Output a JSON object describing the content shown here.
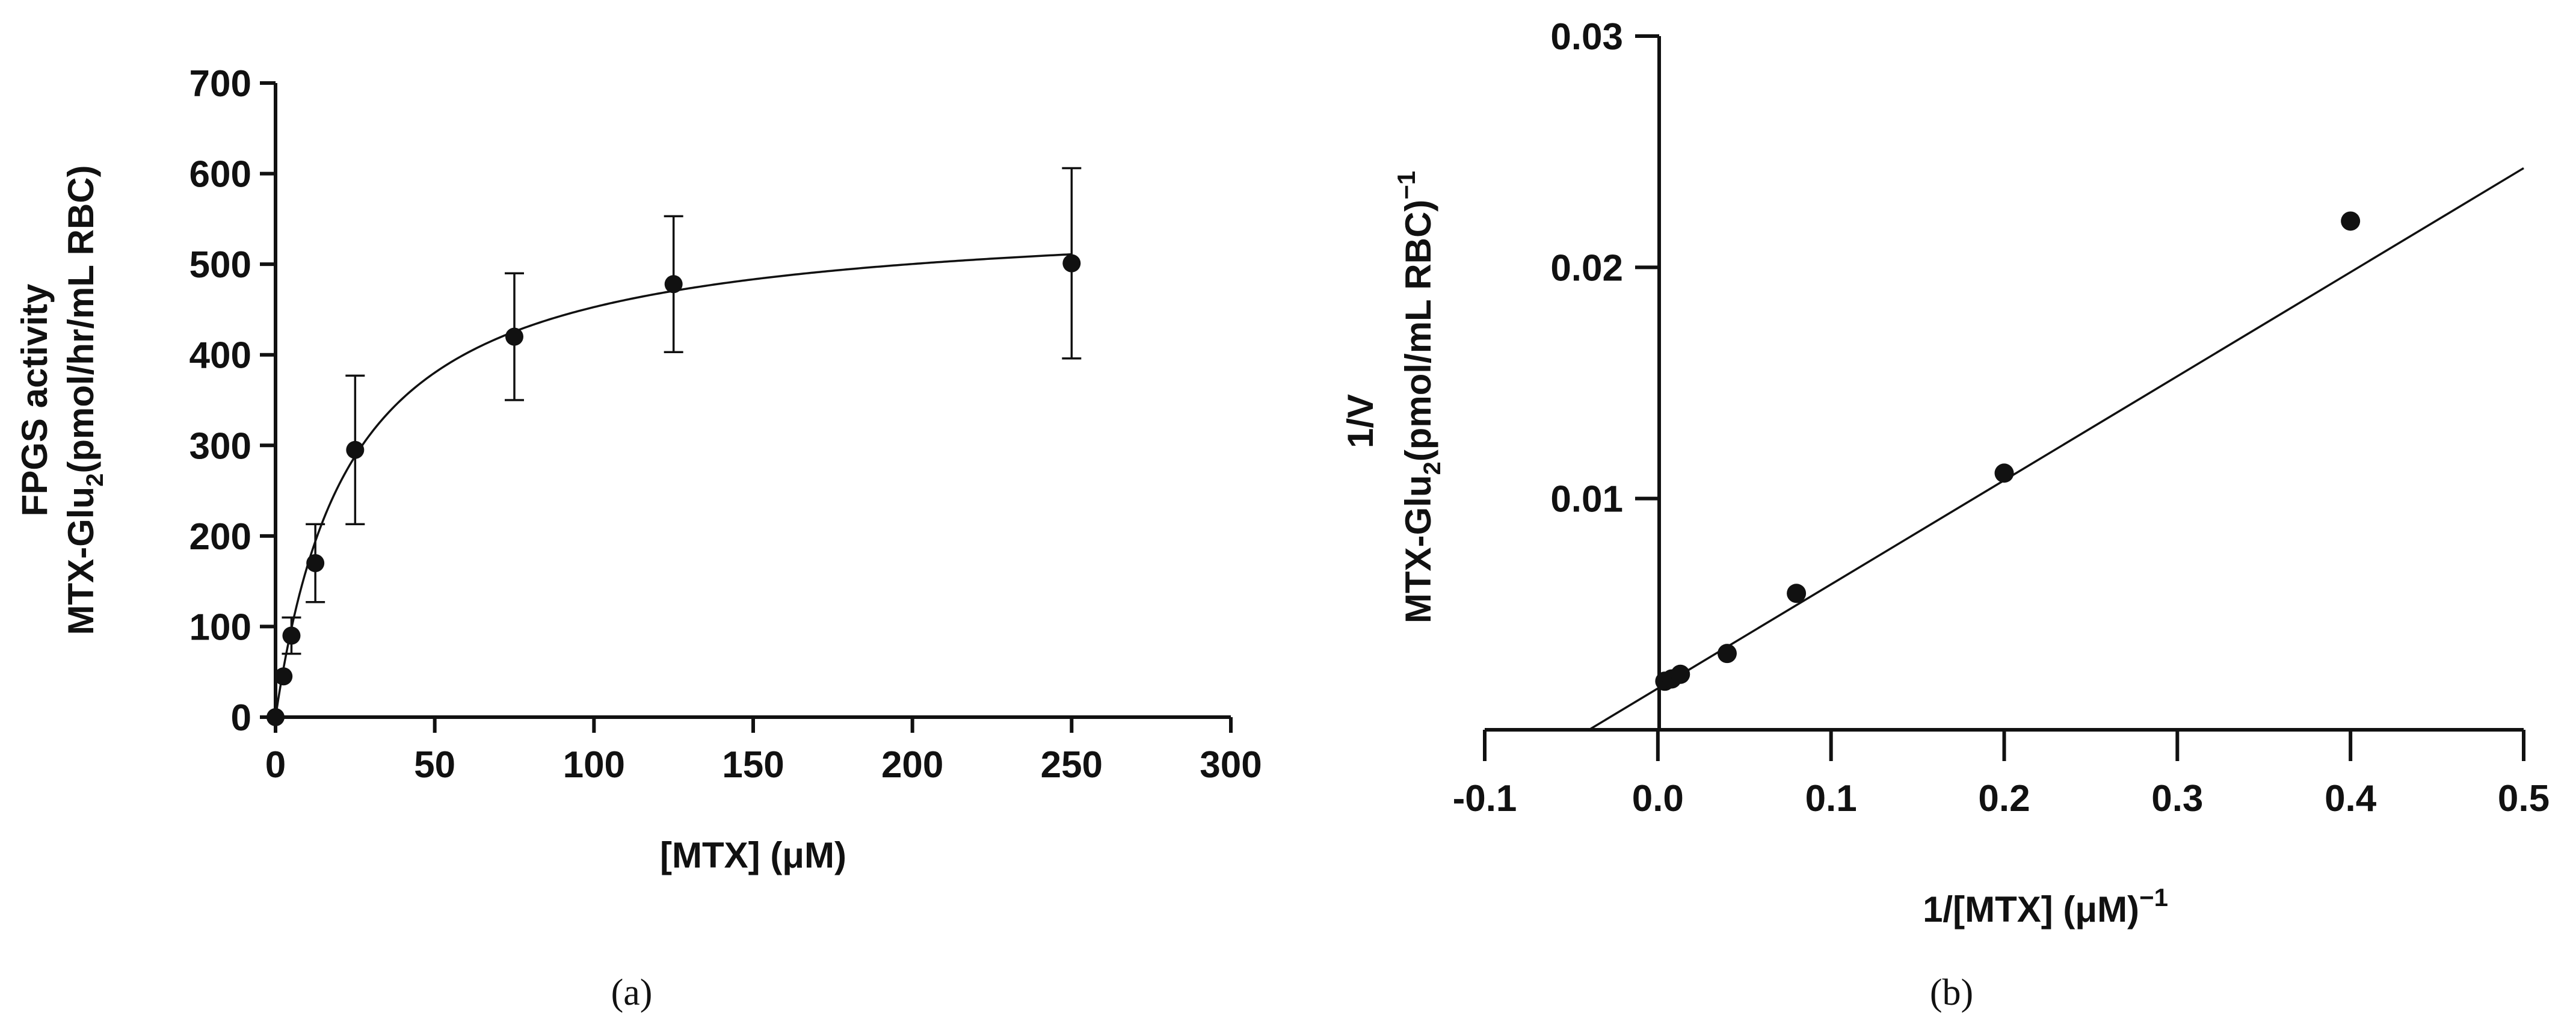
{
  "chart_data": [
    {
      "id": "a",
      "type": "scatter",
      "caption": "(a)",
      "xlabel": "[MTX] (μM)",
      "ylabel_lines": [
        "FPGS activity",
        "MTX-Glu",
        "2",
        "(pmol/hr/mL RBC)"
      ],
      "xlim": [
        0,
        300
      ],
      "ylim": [
        0,
        700
      ],
      "xticks": [
        0,
        50,
        100,
        150,
        200,
        250,
        300
      ],
      "yticks": [
        0,
        100,
        200,
        300,
        400,
        500,
        600,
        700
      ],
      "points": [
        {
          "x": 0,
          "y": 0,
          "err": 0
        },
        {
          "x": 2.5,
          "y": 45,
          "err": 0
        },
        {
          "x": 5,
          "y": 90,
          "err": 20
        },
        {
          "x": 12.5,
          "y": 170,
          "err": 43
        },
        {
          "x": 25,
          "y": 295,
          "err": 82
        },
        {
          "x": 75,
          "y": 420,
          "err": 70
        },
        {
          "x": 125,
          "y": 478,
          "err": 75
        },
        {
          "x": 250,
          "y": 501,
          "err": 105
        }
      ],
      "fit": {
        "model": "michaelis-menten",
        "vmax": 559,
        "km": 23.5,
        "x_range": [
          0,
          250
        ]
      }
    },
    {
      "id": "b",
      "type": "scatter",
      "caption": "(b)",
      "xlabel": "1/[MTX] (μM)",
      "xlabel_sup": "−1",
      "ylabel_lines": [
        "1/V",
        "MTX-Glu",
        "2",
        "(pmol/mL RBC)",
        "−1"
      ],
      "xlim": [
        -0.1,
        0.5
      ],
      "ylim": [
        0,
        0.03
      ],
      "xticks": [
        -0.1,
        0.0,
        0.1,
        0.2,
        0.3,
        0.4,
        0.5
      ],
      "xtick_labels": [
        "-0.1",
        "0.0",
        "0.1",
        "0.2",
        "0.3",
        "0.4",
        "0.5"
      ],
      "yticks": [
        0.01,
        0.02,
        0.03
      ],
      "ytick_labels": [
        "0.01",
        "0.02",
        "0.03"
      ],
      "points": [
        {
          "x": 0.004,
          "y": 0.0021
        },
        {
          "x": 0.008,
          "y": 0.0022
        },
        {
          "x": 0.013,
          "y": 0.0024
        },
        {
          "x": 0.04,
          "y": 0.0033
        },
        {
          "x": 0.08,
          "y": 0.0059
        },
        {
          "x": 0.2,
          "y": 0.0111
        },
        {
          "x": 0.4,
          "y": 0.022
        }
      ],
      "fit": {
        "model": "linear",
        "slope": 0.045,
        "intercept": 0.00179,
        "x_range": [
          -0.04,
          0.5
        ]
      }
    }
  ]
}
